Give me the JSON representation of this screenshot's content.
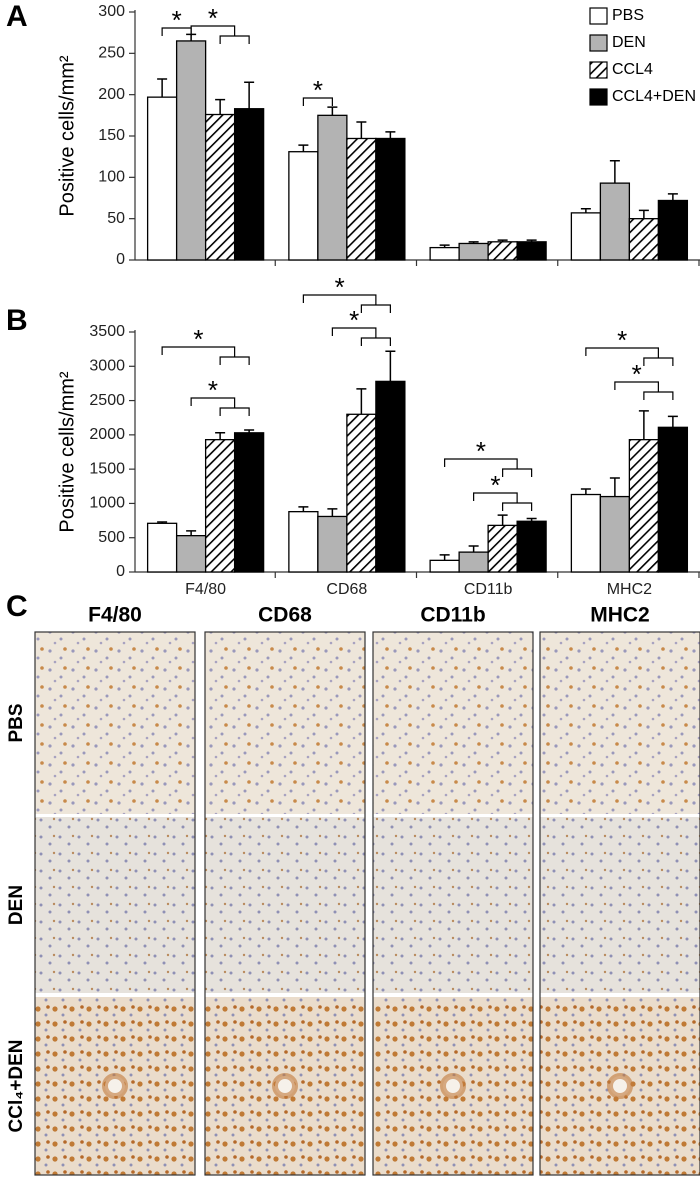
{
  "chart_data": [
    {
      "type": "bar",
      "panel_label": "A",
      "y_label": "Positive cells/mm²",
      "categories": [
        null,
        null,
        null,
        null
      ],
      "ylim": [
        0,
        300
      ],
      "yticks": [
        0,
        50,
        100,
        150,
        200,
        250,
        300
      ],
      "legend": "top-right",
      "series": [
        {
          "name": "PBS",
          "color": "#ffffff",
          "values": [
            197,
            131,
            15,
            57
          ],
          "errors": [
            22,
            8,
            3,
            5
          ]
        },
        {
          "name": "DEN",
          "color": "#b3b3b3",
          "values": [
            265,
            175,
            20,
            93
          ],
          "errors": [
            8,
            10,
            2,
            27
          ]
        },
        {
          "name": "CCL4",
          "color": "#000000",
          "hatch": true,
          "values": [
            176,
            147,
            22,
            50
          ],
          "errors": [
            18,
            20,
            2,
            10
          ]
        },
        {
          "name": "CCL4+DEN",
          "color": "#000000",
          "values": [
            183,
            147,
            22,
            72
          ],
          "errors": [
            32,
            8,
            2,
            8
          ]
        }
      ],
      "annotations": [
        "*",
        "*",
        "*"
      ]
    },
    {
      "type": "bar",
      "panel_label": "B",
      "y_label": "Positive cells/mm²",
      "categories": [
        "F4/80",
        "CD68",
        "CD11b",
        "MHC2"
      ],
      "ylim": [
        0,
        3500
      ],
      "yticks": [
        0,
        500,
        1000,
        1500,
        2000,
        2500,
        3000,
        3500
      ],
      "series": [
        {
          "color": "#ffffff",
          "values": [
            710,
            880,
            170,
            1130
          ],
          "errors": [
            20,
            70,
            80,
            80
          ]
        },
        {
          "color": "#b3b3b3",
          "values": [
            530,
            810,
            290,
            1100
          ],
          "errors": [
            70,
            110,
            90,
            270
          ]
        },
        {
          "color": "#000000",
          "hatch": true,
          "values": [
            1930,
            2300,
            680,
            1930
          ],
          "errors": [
            100,
            370,
            150,
            420
          ]
        },
        {
          "color": "#000000",
          "values": [
            2030,
            2780,
            740,
            2110
          ],
          "errors": [
            40,
            440,
            40,
            160
          ]
        }
      ],
      "annotations": [
        "*",
        "*",
        "*",
        "*",
        "*",
        "*",
        "*",
        "*"
      ]
    }
  ],
  "panel_c": {
    "label": "C",
    "columns": [
      "F4/80",
      "CD68",
      "CD11b",
      "MHC2"
    ],
    "rows": [
      "PBS",
      "DEN",
      "CCl₄+DEN"
    ]
  }
}
